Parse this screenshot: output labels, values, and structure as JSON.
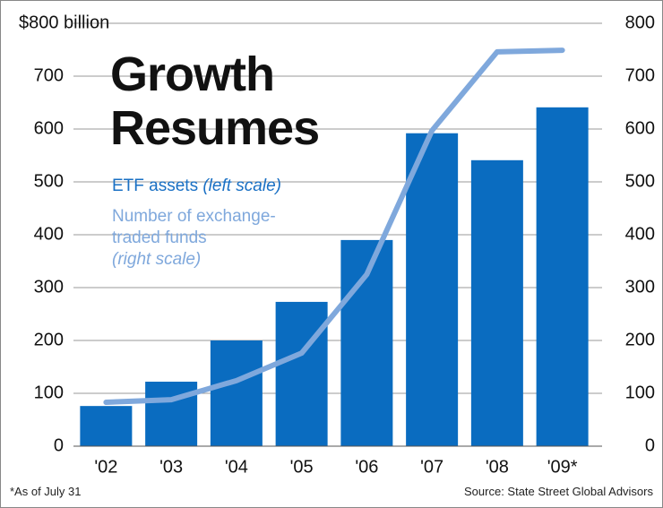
{
  "chart_data": {
    "type": "bar-line",
    "title": "Growth Resumes",
    "categories": [
      "'02",
      "'03",
      "'04",
      "'05",
      "'06",
      "'07",
      "'08",
      "'09*"
    ],
    "series": [
      {
        "name": "ETF assets",
        "scale_label": "(left scale)",
        "type": "bar",
        "color": "#0a6cc0",
        "values": [
          76,
          122,
          200,
          273,
          390,
          592,
          541,
          641
        ]
      },
      {
        "name": "Number of exchange-traded funds",
        "scale_label": "(right scale)",
        "type": "line",
        "axis": "y2",
        "color": "#7fa8dc",
        "values": [
          83,
          88,
          124,
          176,
          325,
          597,
          746,
          749
        ]
      }
    ],
    "ylim": [
      0,
      800
    ],
    "yticks": [
      0,
      100,
      200,
      300,
      400,
      500,
      600,
      700,
      {
        "value": 800,
        "label": "$800 billion"
      }
    ],
    "y2lim": [
      0,
      800
    ],
    "y2ticks": [
      0,
      100,
      200,
      300,
      400,
      500,
      600,
      700,
      800
    ],
    "grid": true,
    "footnote": "*As of July 31",
    "source": "Source: State Street Global Advisors"
  }
}
